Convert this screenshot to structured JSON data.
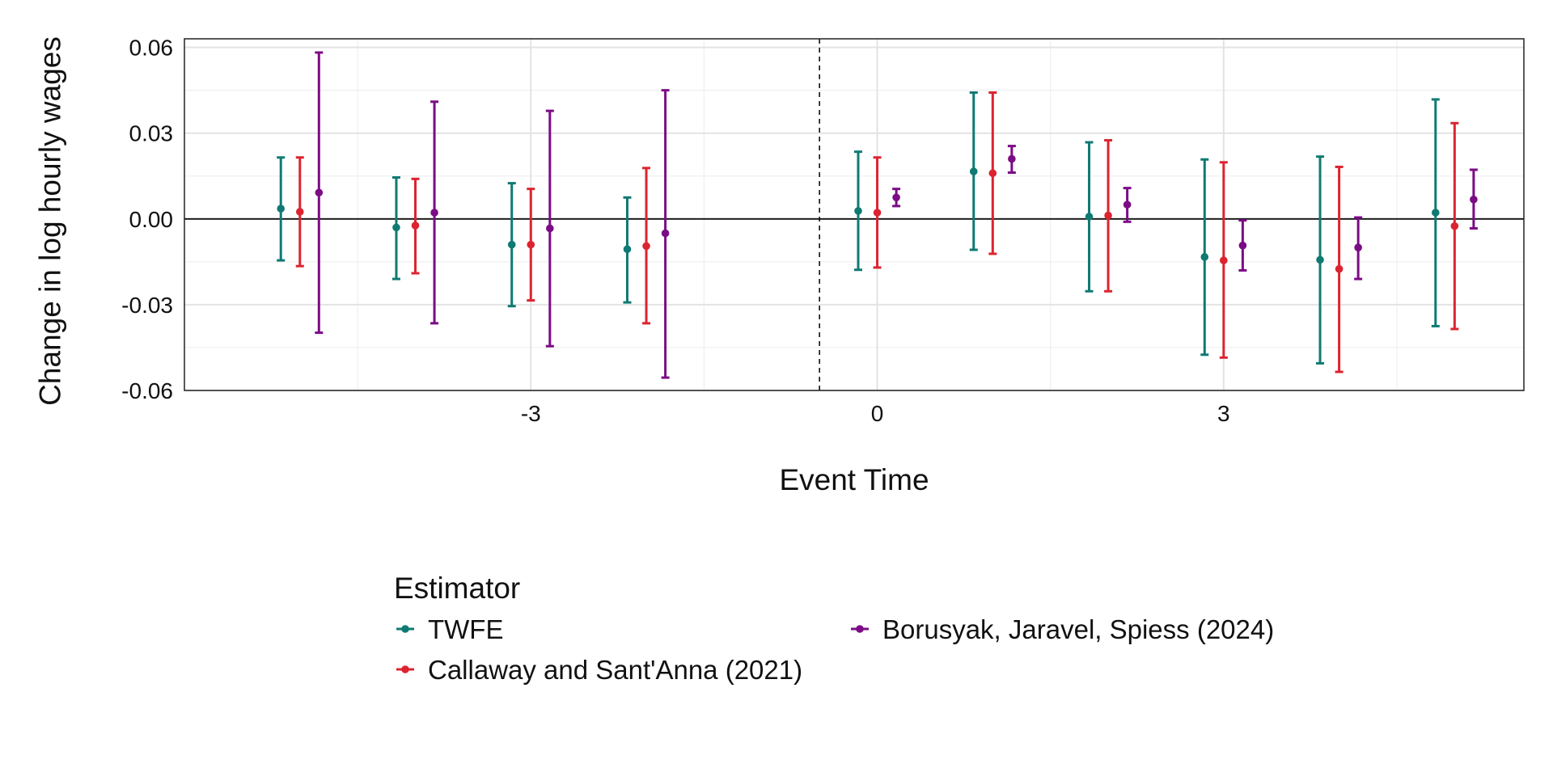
{
  "chart_data": {
    "type": "scatter",
    "subtype": "event-study point estimates with confidence intervals",
    "title": "",
    "xlabel": "Event Time",
    "ylabel": "Change in log hourly wages",
    "x": [
      -5,
      -4,
      -3,
      -2,
      0,
      1,
      2,
      3,
      4,
      5
    ],
    "x_ticks": [
      -3,
      0,
      3
    ],
    "x_tick_labels": [
      "-3",
      "0",
      "3"
    ],
    "xlim": [
      -6,
      5.6
    ],
    "ylim": [
      -0.06,
      0.063
    ],
    "y_ticks": [
      0.06,
      0.03,
      0.0,
      -0.03,
      -0.06
    ],
    "y_tick_labels": [
      "0.06",
      "0.03",
      "0.00",
      "-0.03",
      "-0.06"
    ],
    "reference_lines": {
      "horizontal_y": 0,
      "vertical_dashed_x": -0.5
    },
    "grid": true,
    "legend": {
      "title": "Estimator",
      "position": "bottom"
    },
    "series": [
      {
        "name": "TWFE",
        "color": "#0f7a73",
        "values": [
          0.0036,
          -0.003,
          -0.009,
          -0.0106,
          0.0028,
          0.0166,
          0.0008,
          -0.0133,
          -0.0143,
          0.0022
        ],
        "lower": [
          -0.0145,
          -0.021,
          -0.0305,
          -0.0292,
          -0.0178,
          -0.0108,
          -0.0253,
          -0.0475,
          -0.0505,
          -0.0375
        ],
        "upper": [
          0.0215,
          0.0145,
          0.0125,
          0.0075,
          0.0235,
          0.0442,
          0.0268,
          0.0208,
          0.0218,
          0.0418
        ]
      },
      {
        "name": "Callaway and Sant'Anna (2021)",
        "color": "#dc2430",
        "values": [
          0.0025,
          -0.0023,
          -0.009,
          -0.0095,
          0.0022,
          0.016,
          0.0012,
          -0.0145,
          -0.0175,
          -0.0025
        ],
        "lower": [
          -0.0165,
          -0.019,
          -0.0285,
          -0.0365,
          -0.017,
          -0.0122,
          -0.0253,
          -0.0485,
          -0.0535,
          -0.0385
        ],
        "upper": [
          0.0215,
          0.014,
          0.0105,
          0.0178,
          0.0215,
          0.0442,
          0.0275,
          0.0198,
          0.0182,
          0.0335
        ]
      },
      {
        "name": "Borusyak, Jaravel, Spiess (2024)",
        "color": "#7b0c85",
        "values": [
          0.0092,
          0.0022,
          -0.0033,
          -0.005,
          0.0075,
          0.021,
          0.005,
          -0.0093,
          -0.01,
          0.0068
        ],
        "lower": [
          -0.0398,
          -0.0365,
          -0.0445,
          -0.0555,
          0.0045,
          0.0162,
          -0.001,
          -0.018,
          -0.021,
          -0.0033
        ],
        "upper": [
          0.0582,
          0.041,
          0.0378,
          0.045,
          0.0105,
          0.0255,
          0.0108,
          -0.0005,
          0.0005,
          0.0172
        ]
      }
    ]
  }
}
